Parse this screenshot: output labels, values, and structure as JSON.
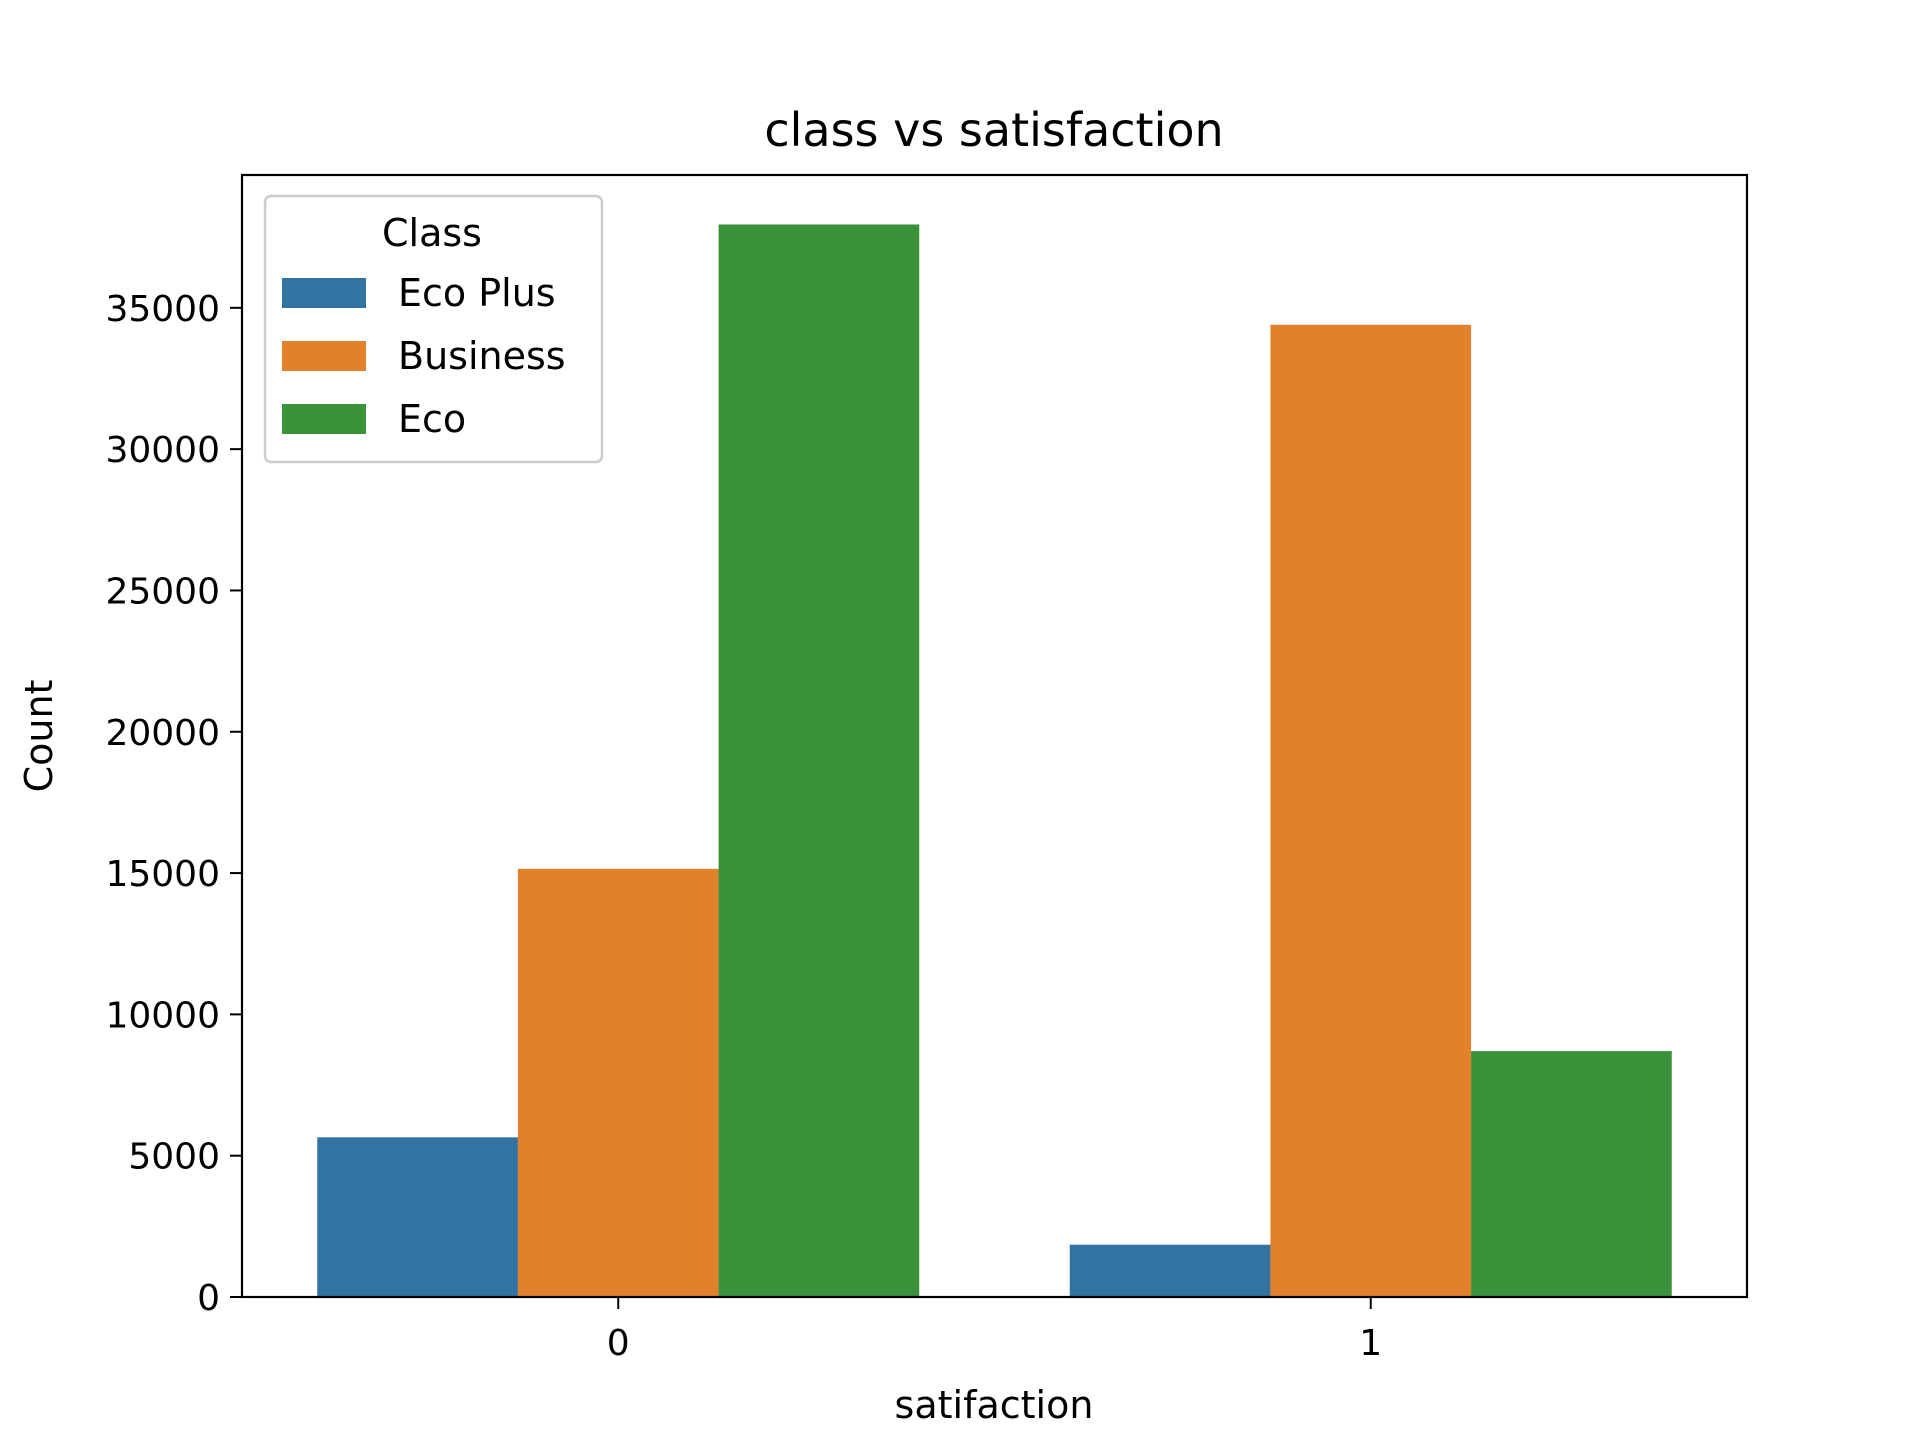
{
  "chart_data": {
    "type": "bar",
    "title": "class vs satisfaction",
    "xlabel": "satifaction",
    "ylabel": "Count",
    "categories": [
      "0",
      "1"
    ],
    "ylim": [
      0,
      39700
    ],
    "yticks": [
      0,
      5000,
      10000,
      15000,
      20000,
      25000,
      30000,
      35000
    ],
    "series": [
      {
        "name": "Eco Plus",
        "values": [
          5650,
          1850
        ]
      },
      {
        "name": "Business",
        "values": [
          15150,
          34400
        ]
      },
      {
        "name": "Eco",
        "values": [
          37950,
          8700
        ]
      }
    ],
    "legend": {
      "title": "Class",
      "placement": "top-left"
    },
    "grid": false
  },
  "colors": {
    "Eco Plus": "#3274a1",
    "Business": "#e1812c",
    "Eco": "#3a923a"
  }
}
